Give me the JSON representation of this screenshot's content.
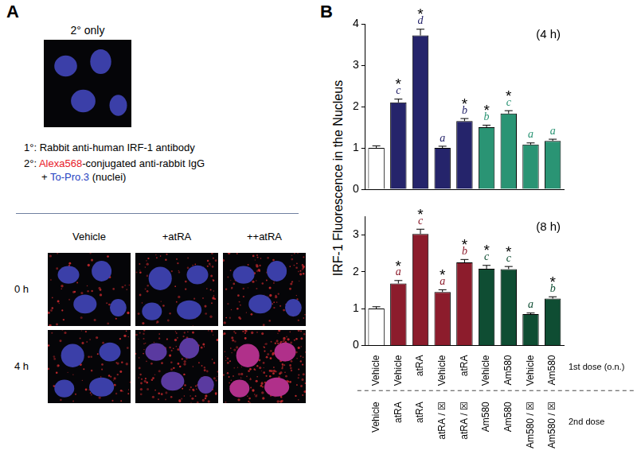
{
  "panel_a": {
    "label": "A",
    "control_title": "2° only",
    "primary": "1°: Rabbit anti-human IRF-1 antibody",
    "secondary_lines": [
      [
        {
          "text": "2°: "
        },
        {
          "text": "Alexa568",
          "color": "#e8202a"
        },
        {
          "text": "-conjugated anti-rabbit IgG"
        }
      ],
      [
        {
          "text": "+ "
        },
        {
          "text": "To-Pro.3",
          "color": "#1f3fbf"
        },
        {
          "text": " (nuclei)"
        }
      ]
    ],
    "columns": [
      "Vehicle",
      "+atRA",
      "++atRA"
    ],
    "rows": [
      "0 h",
      "4 h"
    ]
  },
  "panel_b": {
    "label": "B",
    "ylabel": "IRF-1 Fluorescence in the Nucleus"
  },
  "chart_data": [
    {
      "type": "bar",
      "title": "(4 h)",
      "categories": [
        "Vehicle",
        "Vehicle",
        "atRA",
        "Vehicle",
        "atRA",
        "Vehicle",
        "Am580",
        "Vehicle",
        "Am580"
      ],
      "values": [
        1.0,
        2.1,
        3.72,
        1.0,
        1.65,
        1.5,
        1.83,
        1.08,
        1.17
      ],
      "errors": [
        0.05,
        0.08,
        0.15,
        0.04,
        0.06,
        0.05,
        0.07,
        0.04,
        0.04
      ],
      "colors": [
        "#ffffff",
        "#25246b",
        "#25246b",
        "#25246b",
        "#25246b",
        "#2a9474",
        "#2a9474",
        "#2a9474",
        "#2a9474"
      ],
      "significance": [
        null,
        "*",
        "*",
        null,
        "*",
        "*",
        "*",
        null,
        null
      ],
      "letters": [
        null,
        "c",
        "d",
        "a",
        "b",
        "b",
        "c",
        "a",
        "a"
      ],
      "ylim": [
        0,
        4
      ],
      "yticks": [
        0,
        1,
        2,
        3,
        4
      ],
      "grid": false,
      "tick_labels": "y"
    },
    {
      "type": "bar",
      "title": "(8 h)",
      "categories": [
        "Vehicle",
        "Vehicle",
        "atRA",
        "Vehicle",
        "atRA",
        "Vehicle",
        "Am580",
        "Vehicle",
        "Am580"
      ],
      "categories_2": [
        "Vehicle",
        "atRA",
        "atRA",
        "atRA / ☒",
        "atRA / ☒",
        "Am580",
        "Am580",
        "Am580 / ☒",
        "Am580 / ☒"
      ],
      "x_label": "1st dose (o.n.)",
      "x2_label": "2nd dose",
      "values": [
        1.0,
        1.68,
        3.02,
        1.45,
        2.25,
        2.08,
        2.07,
        0.85,
        1.27
      ],
      "errors": [
        0.05,
        0.08,
        0.13,
        0.06,
        0.08,
        0.09,
        0.07,
        0.03,
        0.05
      ],
      "colors": [
        "#ffffff",
        "#8c1c2c",
        "#8c1c2c",
        "#8c1c2c",
        "#8c1c2c",
        "#0f4d33",
        "#0f4d33",
        "#0f4d33",
        "#0f4d33"
      ],
      "significance": [
        null,
        "*",
        "*",
        "*",
        "*",
        "*",
        "*",
        null,
        "*"
      ],
      "letters": [
        null,
        "a",
        "c",
        "a",
        "b",
        "c",
        "c",
        "a",
        "b"
      ],
      "ylim": [
        0,
        3.5
      ],
      "yticks": [
        0,
        1,
        2,
        3
      ],
      "grid": false
    }
  ]
}
